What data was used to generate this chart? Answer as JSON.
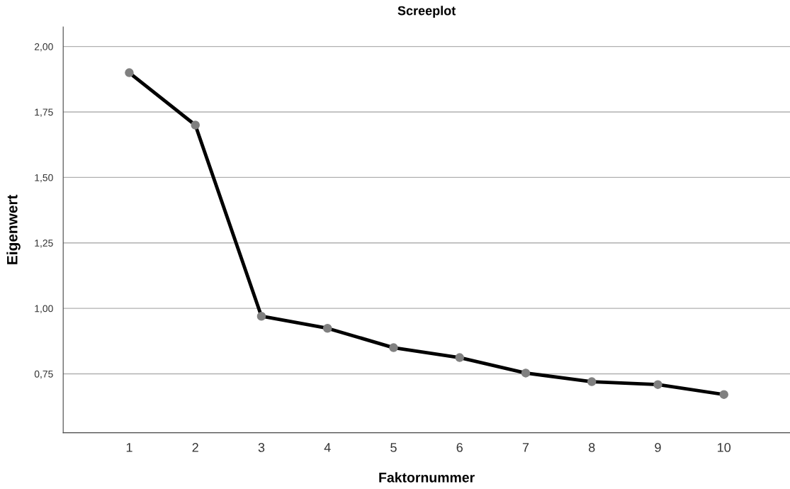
{
  "chart_data": {
    "type": "line",
    "title": "Screeplot",
    "xlabel": "Faktornummer",
    "ylabel": "Eigenwert",
    "x": [
      1,
      2,
      3,
      4,
      5,
      6,
      7,
      8,
      9,
      10
    ],
    "series": [
      {
        "color": "#000000",
        "values": [
          1.9,
          1.7,
          0.97,
          0.924,
          0.85,
          0.812,
          0.753,
          0.72,
          0.709,
          0.671
        ]
      }
    ],
    "xlim": [
      0,
      11
    ],
    "xticks": [
      1,
      2,
      3,
      4,
      5,
      6,
      7,
      8,
      9,
      10
    ],
    "ylim": [
      0.525,
      2.075
    ],
    "yticks": [
      {
        "value": 0.75,
        "label": "0,75"
      },
      {
        "value": 1.0,
        "label": "1,00"
      },
      {
        "value": 1.25,
        "label": "1,25"
      },
      {
        "value": 1.5,
        "label": "1,50"
      },
      {
        "value": 1.75,
        "label": "1,75"
      },
      {
        "value": 2.0,
        "label": "2,00"
      }
    ],
    "grid": "y",
    "marker": "circle",
    "line_style": "solid"
  }
}
